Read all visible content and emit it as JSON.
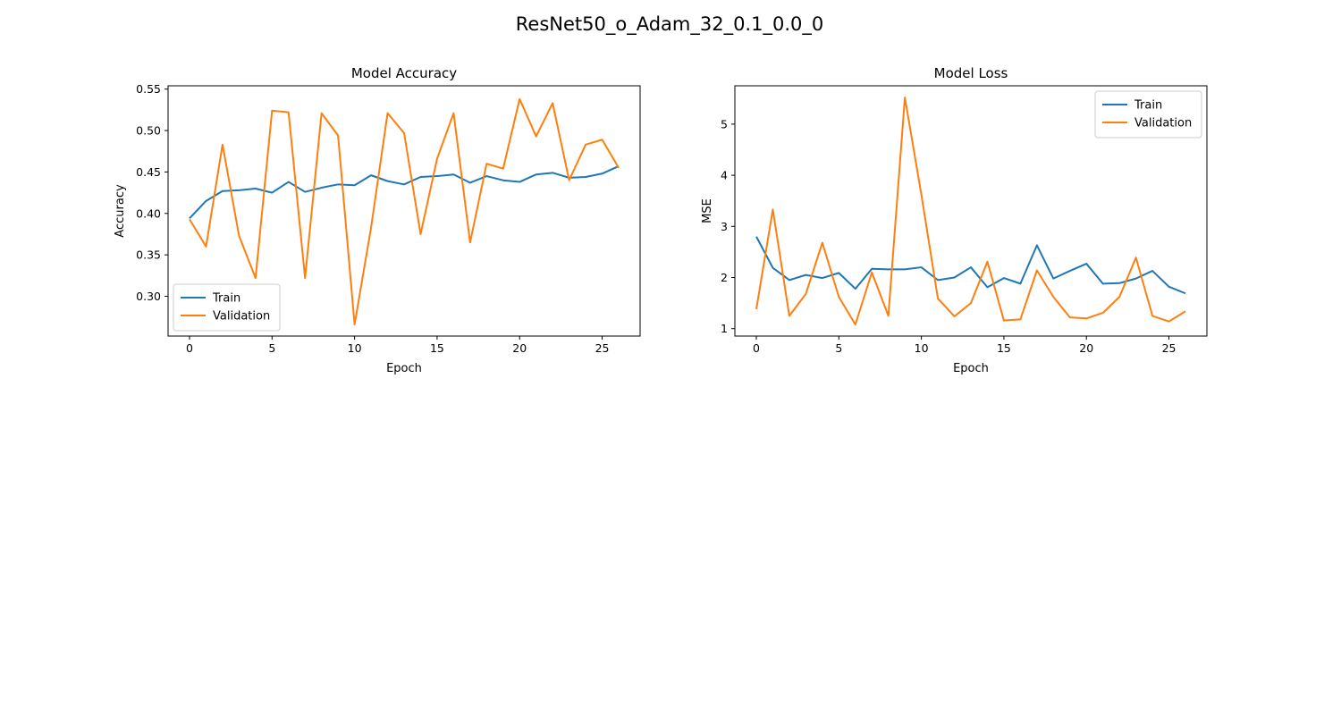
{
  "figure": {
    "title": "ResNet50_o_Adam_32_0.1_0.0_0"
  },
  "colors": {
    "train": "#1f77b4",
    "validation": "#ff7f0e"
  },
  "chart_data": [
    {
      "type": "line",
      "title": "Model Accuracy",
      "xlabel": "Epoch",
      "ylabel": "Accuracy",
      "xlim": [
        -1.3,
        27.3
      ],
      "ylim": [
        0.252,
        0.554
      ],
      "xticks": [
        0,
        5,
        10,
        15,
        20,
        25
      ],
      "yticks": [
        0.3,
        0.35,
        0.4,
        0.45,
        0.5,
        0.55
      ],
      "ytick_decimals": 2,
      "legend": "lower-left",
      "x": [
        0,
        1,
        2,
        3,
        4,
        5,
        6,
        7,
        8,
        9,
        10,
        11,
        12,
        13,
        14,
        15,
        16,
        17,
        18,
        19,
        20,
        21,
        22,
        23,
        24,
        25,
        26
      ],
      "series": [
        {
          "name": "Train",
          "color": "#1f77b4",
          "values": [
            0.394,
            0.415,
            0.427,
            0.428,
            0.43,
            0.425,
            0.438,
            0.426,
            0.431,
            0.435,
            0.434,
            0.446,
            0.439,
            0.435,
            0.444,
            0.445,
            0.447,
            0.437,
            0.445,
            0.44,
            0.438,
            0.447,
            0.449,
            0.443,
            0.444,
            0.448,
            0.457
          ]
        },
        {
          "name": "Validation",
          "color": "#ff7f0e",
          "values": [
            0.393,
            0.36,
            0.483,
            0.373,
            0.322,
            0.524,
            0.522,
            0.322,
            0.521,
            0.494,
            0.266,
            0.383,
            0.521,
            0.497,
            0.375,
            0.466,
            0.521,
            0.365,
            0.46,
            0.454,
            0.538,
            0.493,
            0.533,
            0.44,
            0.483,
            0.489,
            0.455
          ]
        }
      ]
    },
    {
      "type": "line",
      "title": "Model Loss",
      "xlabel": "Epoch",
      "ylabel": "MSE",
      "xlim": [
        -1.3,
        27.3
      ],
      "ylim": [
        0.855,
        5.75
      ],
      "xticks": [
        0,
        5,
        10,
        15,
        20,
        25
      ],
      "yticks": [
        1,
        2,
        3,
        4,
        5
      ],
      "ytick_decimals": 0,
      "legend": "upper-right",
      "x": [
        0,
        1,
        2,
        3,
        4,
        5,
        6,
        7,
        8,
        9,
        10,
        11,
        12,
        13,
        14,
        15,
        16,
        17,
        18,
        19,
        20,
        21,
        22,
        23,
        24,
        25,
        26
      ],
      "series": [
        {
          "name": "Train",
          "color": "#1f77b4",
          "values": [
            2.8,
            2.19,
            1.95,
            2.05,
            1.99,
            2.09,
            1.78,
            2.17,
            2.16,
            2.16,
            2.2,
            1.95,
            2.0,
            2.2,
            1.81,
            1.99,
            1.88,
            2.63,
            1.98,
            2.13,
            2.27,
            1.88,
            1.89,
            1.98,
            2.13,
            1.82,
            1.69
          ]
        },
        {
          "name": "Validation",
          "color": "#ff7f0e",
          "values": [
            1.38,
            3.33,
            1.25,
            1.68,
            2.68,
            1.62,
            1.08,
            2.1,
            1.25,
            5.52,
            3.62,
            1.59,
            1.24,
            1.5,
            2.31,
            1.16,
            1.18,
            2.14,
            1.62,
            1.22,
            1.2,
            1.31,
            1.62,
            2.39,
            1.25,
            1.14,
            1.34
          ]
        }
      ]
    }
  ]
}
